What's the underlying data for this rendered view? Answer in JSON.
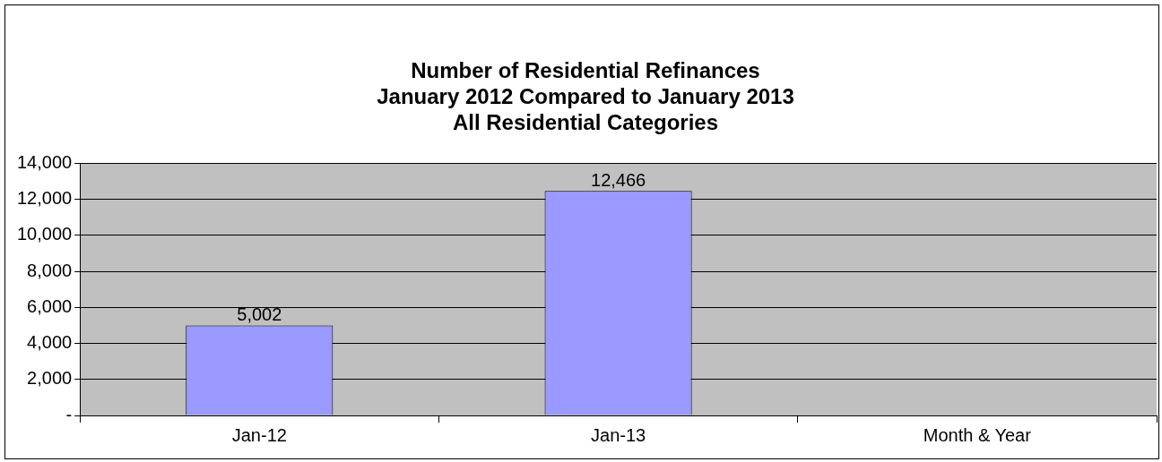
{
  "chart_data": {
    "type": "bar",
    "title": "Number of Residential Refinances\nJanuary 2012 Compared to January 2013\nAll Residential Categories",
    "categories": [
      "Jan-12",
      "Jan-13",
      "Month & Year"
    ],
    "values": [
      5002,
      12466,
      null
    ],
    "value_labels": [
      "5,002",
      "12,466",
      null
    ],
    "color": "#9999ff",
    "ylim": [
      0,
      14000
    ],
    "yticks": [
      {
        "value": 0,
        "label": "-"
      },
      {
        "value": 2000,
        "label": "2,000"
      },
      {
        "value": 4000,
        "label": "4,000"
      },
      {
        "value": 6000,
        "label": "6,000"
      },
      {
        "value": 8000,
        "label": "8,000"
      },
      {
        "value": 10000,
        "label": "10,000"
      },
      {
        "value": 12000,
        "label": "12,000"
      },
      {
        "value": 14000,
        "label": "14,000"
      }
    ],
    "grid": "y",
    "legend": false
  }
}
